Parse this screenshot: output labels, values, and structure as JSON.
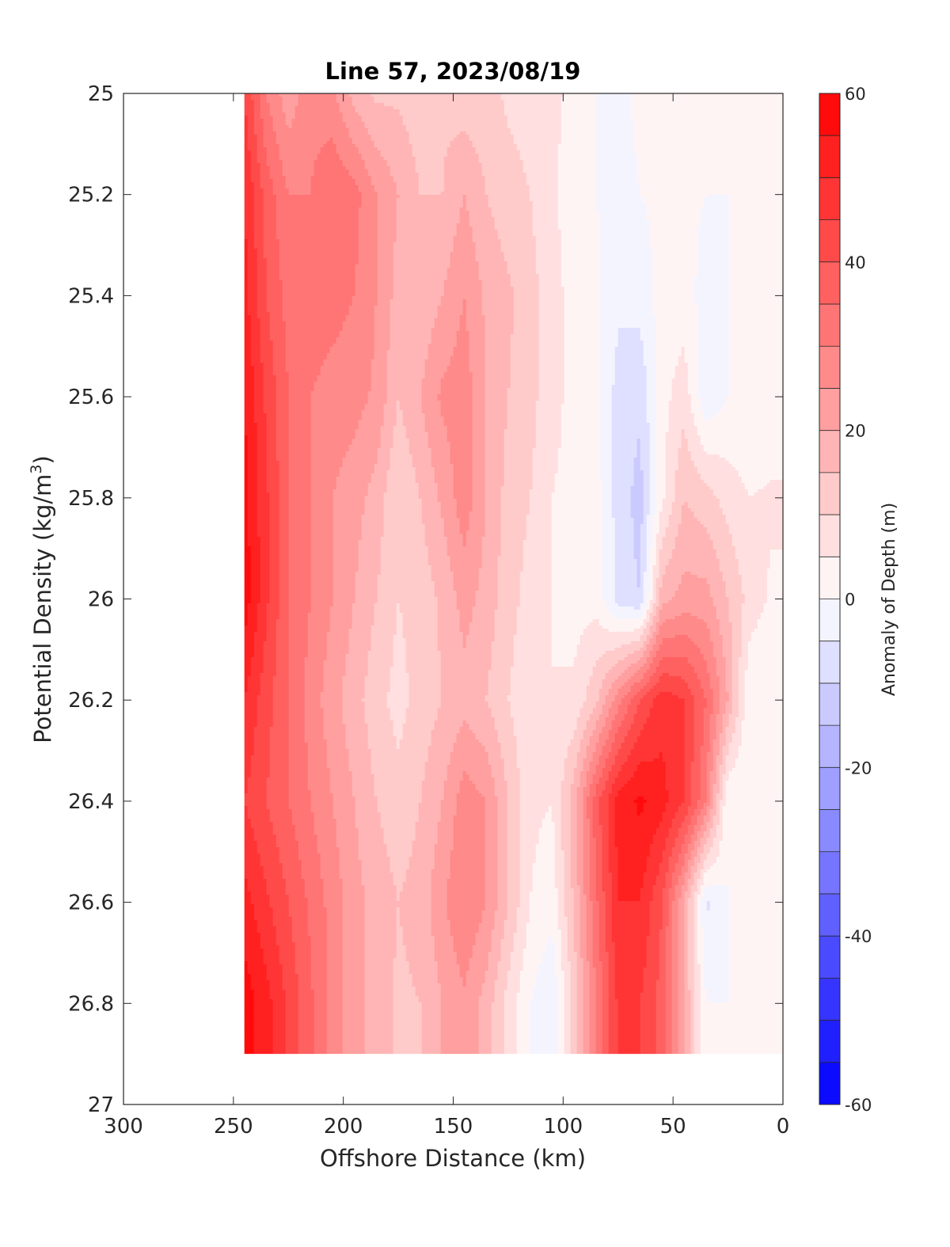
{
  "chart_data": {
    "type": "heatmap",
    "subtype": "filled-contour",
    "title": "Line 57, 2023/08/19",
    "xlabel": "Offshore Distance (km)",
    "ylabel_main": "Potential Density (kg/m",
    "ylabel_sup": "3",
    "ylabel_end": ")",
    "xlim": [
      300,
      0
    ],
    "ylim": [
      25,
      27
    ],
    "x_reversed": true,
    "y_reversed": true,
    "x_ticks": [
      300,
      250,
      200,
      150,
      100,
      50,
      0
    ],
    "x_tick_labels": [
      "300",
      "250",
      "200",
      "150",
      "100",
      "50",
      "0"
    ],
    "y_ticks": [
      25,
      25.2,
      25.4,
      25.6,
      25.8,
      26,
      26.2,
      26.4,
      26.6,
      26.8,
      27
    ],
    "y_tick_labels": [
      "25",
      "25.2",
      "25.4",
      "25.6",
      "25.8",
      "26",
      "26.2",
      "26.4",
      "26.6",
      "26.8",
      "27"
    ],
    "colorbar": {
      "label": "Anomaly of Depth (m)",
      "range": [
        -60,
        60
      ],
      "step": 5,
      "ticks": [
        60,
        40,
        20,
        0,
        -20,
        -40,
        -60
      ],
      "tick_labels": [
        "60",
        "40",
        "20",
        "0",
        "-20",
        "-40",
        "-60"
      ],
      "low_color": "#0000ff",
      "mid_color": "#ffffff",
      "high_color": "#ff0000"
    },
    "zero_contour_color": "#000000",
    "data_coverage": {
      "x_offshore_edge_km": 245,
      "y_bottom_density": 26.9
    },
    "grid_x": [
      245,
      235,
      225,
      215,
      205,
      195,
      185,
      175,
      165,
      155,
      145,
      135,
      125,
      115,
      105,
      95,
      85,
      75,
      65,
      55,
      45,
      35,
      25,
      15,
      5
    ],
    "grid_y": [
      25.0,
      25.2,
      25.4,
      25.6,
      25.8,
      26.0,
      26.2,
      26.4,
      26.6,
      26.8
    ],
    "z": [
      [
        45,
        30,
        22,
        28,
        26,
        18,
        14,
        14,
        12,
        14,
        12,
        12,
        9,
        8,
        6,
        4,
        0,
        -1,
        1,
        0,
        0,
        0,
        0,
        0,
        0
      ],
      [
        50,
        38,
        30,
        30,
        35,
        32,
        25,
        20,
        15,
        15,
        20,
        15,
        12,
        10,
        6,
        2,
        0,
        -2,
        0,
        1,
        1,
        0,
        0,
        0,
        0
      ],
      [
        52,
        40,
        33,
        33,
        32,
        30,
        25,
        18,
        16,
        20,
        25,
        19,
        16,
        12,
        7,
        3,
        1,
        -4,
        -3,
        2,
        2,
        -2,
        0,
        0,
        0
      ],
      [
        55,
        44,
        35,
        30,
        28,
        27,
        24,
        15,
        20,
        26,
        28,
        20,
        15,
        12,
        6,
        4,
        1,
        -7,
        -9,
        3,
        8,
        -4,
        0,
        0,
        0
      ],
      [
        57,
        46,
        35,
        30,
        25,
        22,
        18,
        10,
        15,
        21,
        28,
        20,
        13,
        10,
        5,
        4,
        2,
        -7,
        -12,
        4,
        15,
        12,
        8,
        5,
        6
      ],
      [
        58,
        46,
        35,
        30,
        25,
        20,
        15,
        10,
        12,
        16,
        22,
        18,
        12,
        8,
        5,
        3,
        3,
        -7,
        -10,
        18,
        22,
        22,
        15,
        8,
        4
      ],
      [
        50,
        42,
        35,
        28,
        22,
        17,
        12,
        8,
        12,
        15,
        18,
        15,
        10,
        6,
        5,
        6,
        14,
        28,
        40,
        48,
        45,
        35,
        20,
        0,
        0
      ],
      [
        45,
        40,
        35,
        30,
        25,
        20,
        15,
        12,
        15,
        20,
        28,
        25,
        15,
        6,
        5,
        18,
        38,
        52,
        56,
        52,
        45,
        30,
        0,
        0,
        0
      ],
      [
        52,
        46,
        40,
        34,
        28,
        22,
        18,
        15,
        17,
        24,
        30,
        25,
        15,
        5,
        2,
        16,
        34,
        50,
        50,
        40,
        20,
        -6,
        0,
        0,
        0
      ],
      [
        58,
        52,
        44,
        36,
        28,
        22,
        18,
        14,
        15,
        20,
        24,
        18,
        8,
        0,
        -5,
        12,
        30,
        46,
        45,
        38,
        20,
        0,
        0,
        0,
        0
      ]
    ]
  }
}
